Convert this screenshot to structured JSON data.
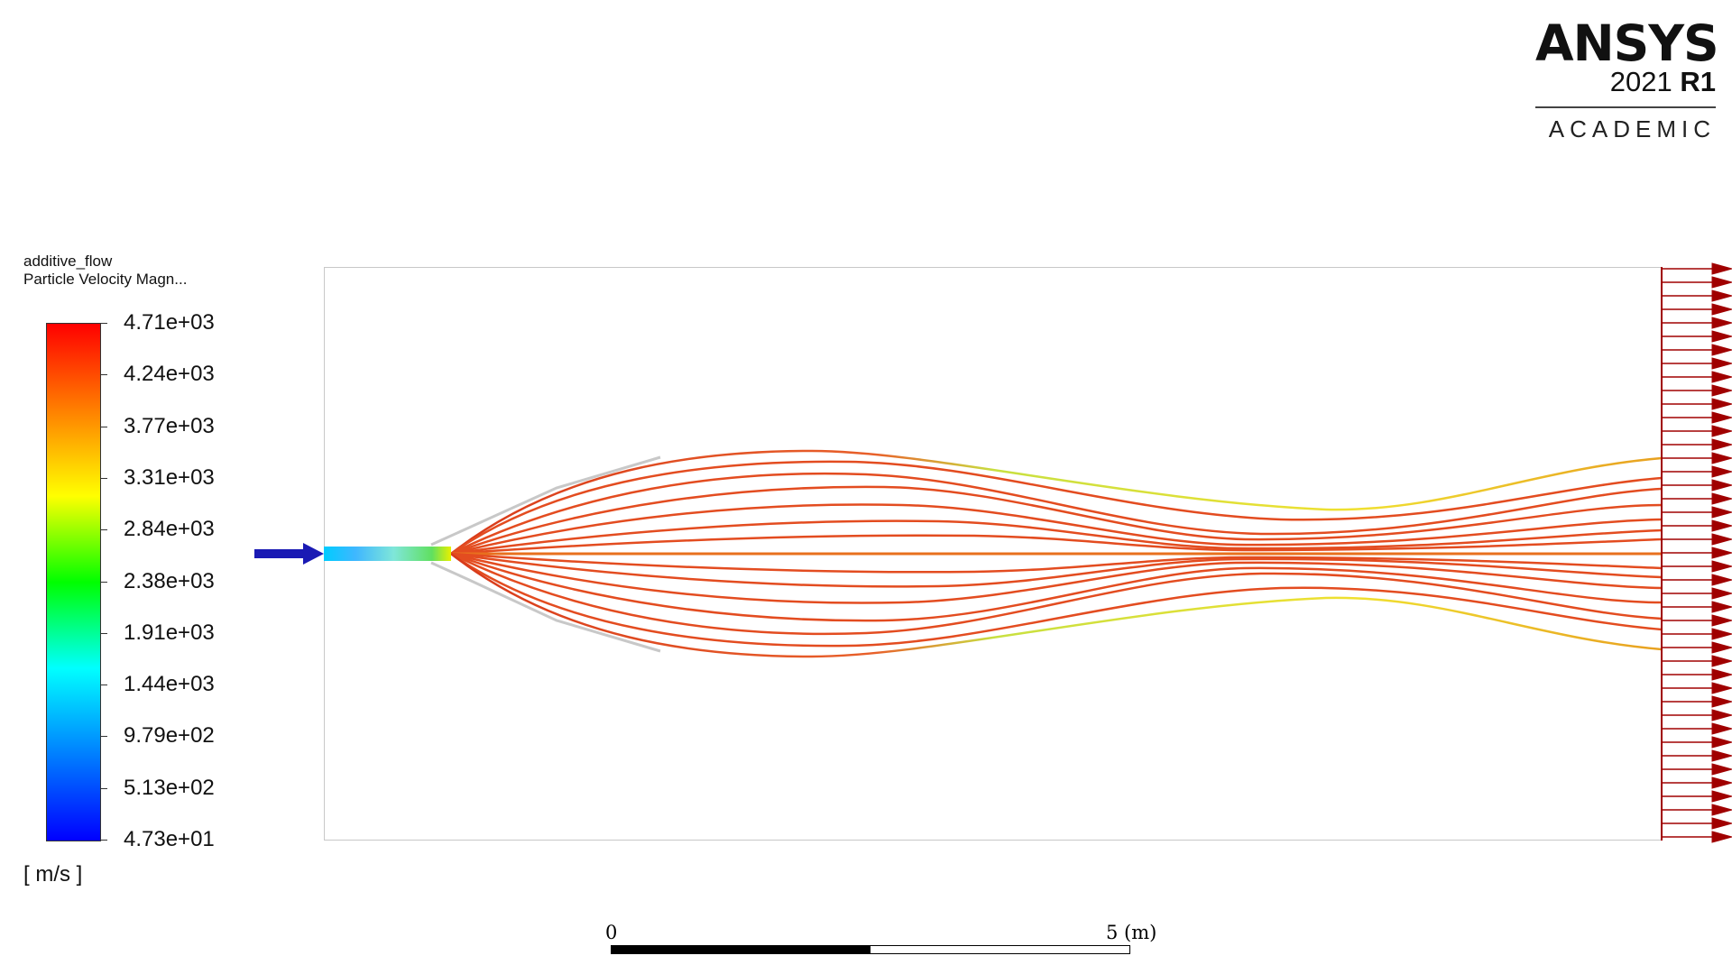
{
  "logo": {
    "brand": "ANSYS",
    "version_year": "2021",
    "version_release": "R1",
    "edition": "ACADEMIC"
  },
  "legend": {
    "name": "additive_flow",
    "variable": "Particle Velocity Magn...",
    "units": "[ m/s ]",
    "labels": [
      "4.71e+03",
      "4.24e+03",
      "3.77e+03",
      "3.31e+03",
      "2.84e+03",
      "2.38e+03",
      "1.91e+03",
      "1.44e+03",
      "9.79e+02",
      "5.13e+02",
      "4.73e+01"
    ],
    "colormap": [
      "#ff0000",
      "#ff7f00",
      "#ffff00",
      "#00ff00",
      "#00ffff",
      "#007fff",
      "#0000ff"
    ]
  },
  "scale": {
    "start_label": "0",
    "end_label": "5 (m)"
  },
  "colors": {
    "inlet_arrow": "#1a1ab4",
    "outlet_arrows": "#a00000",
    "streamline": "#e0401e",
    "outer_streamline": "#d8d833",
    "domain_border": "#c8c8c8",
    "nozzle": "#c8c8c8"
  }
}
